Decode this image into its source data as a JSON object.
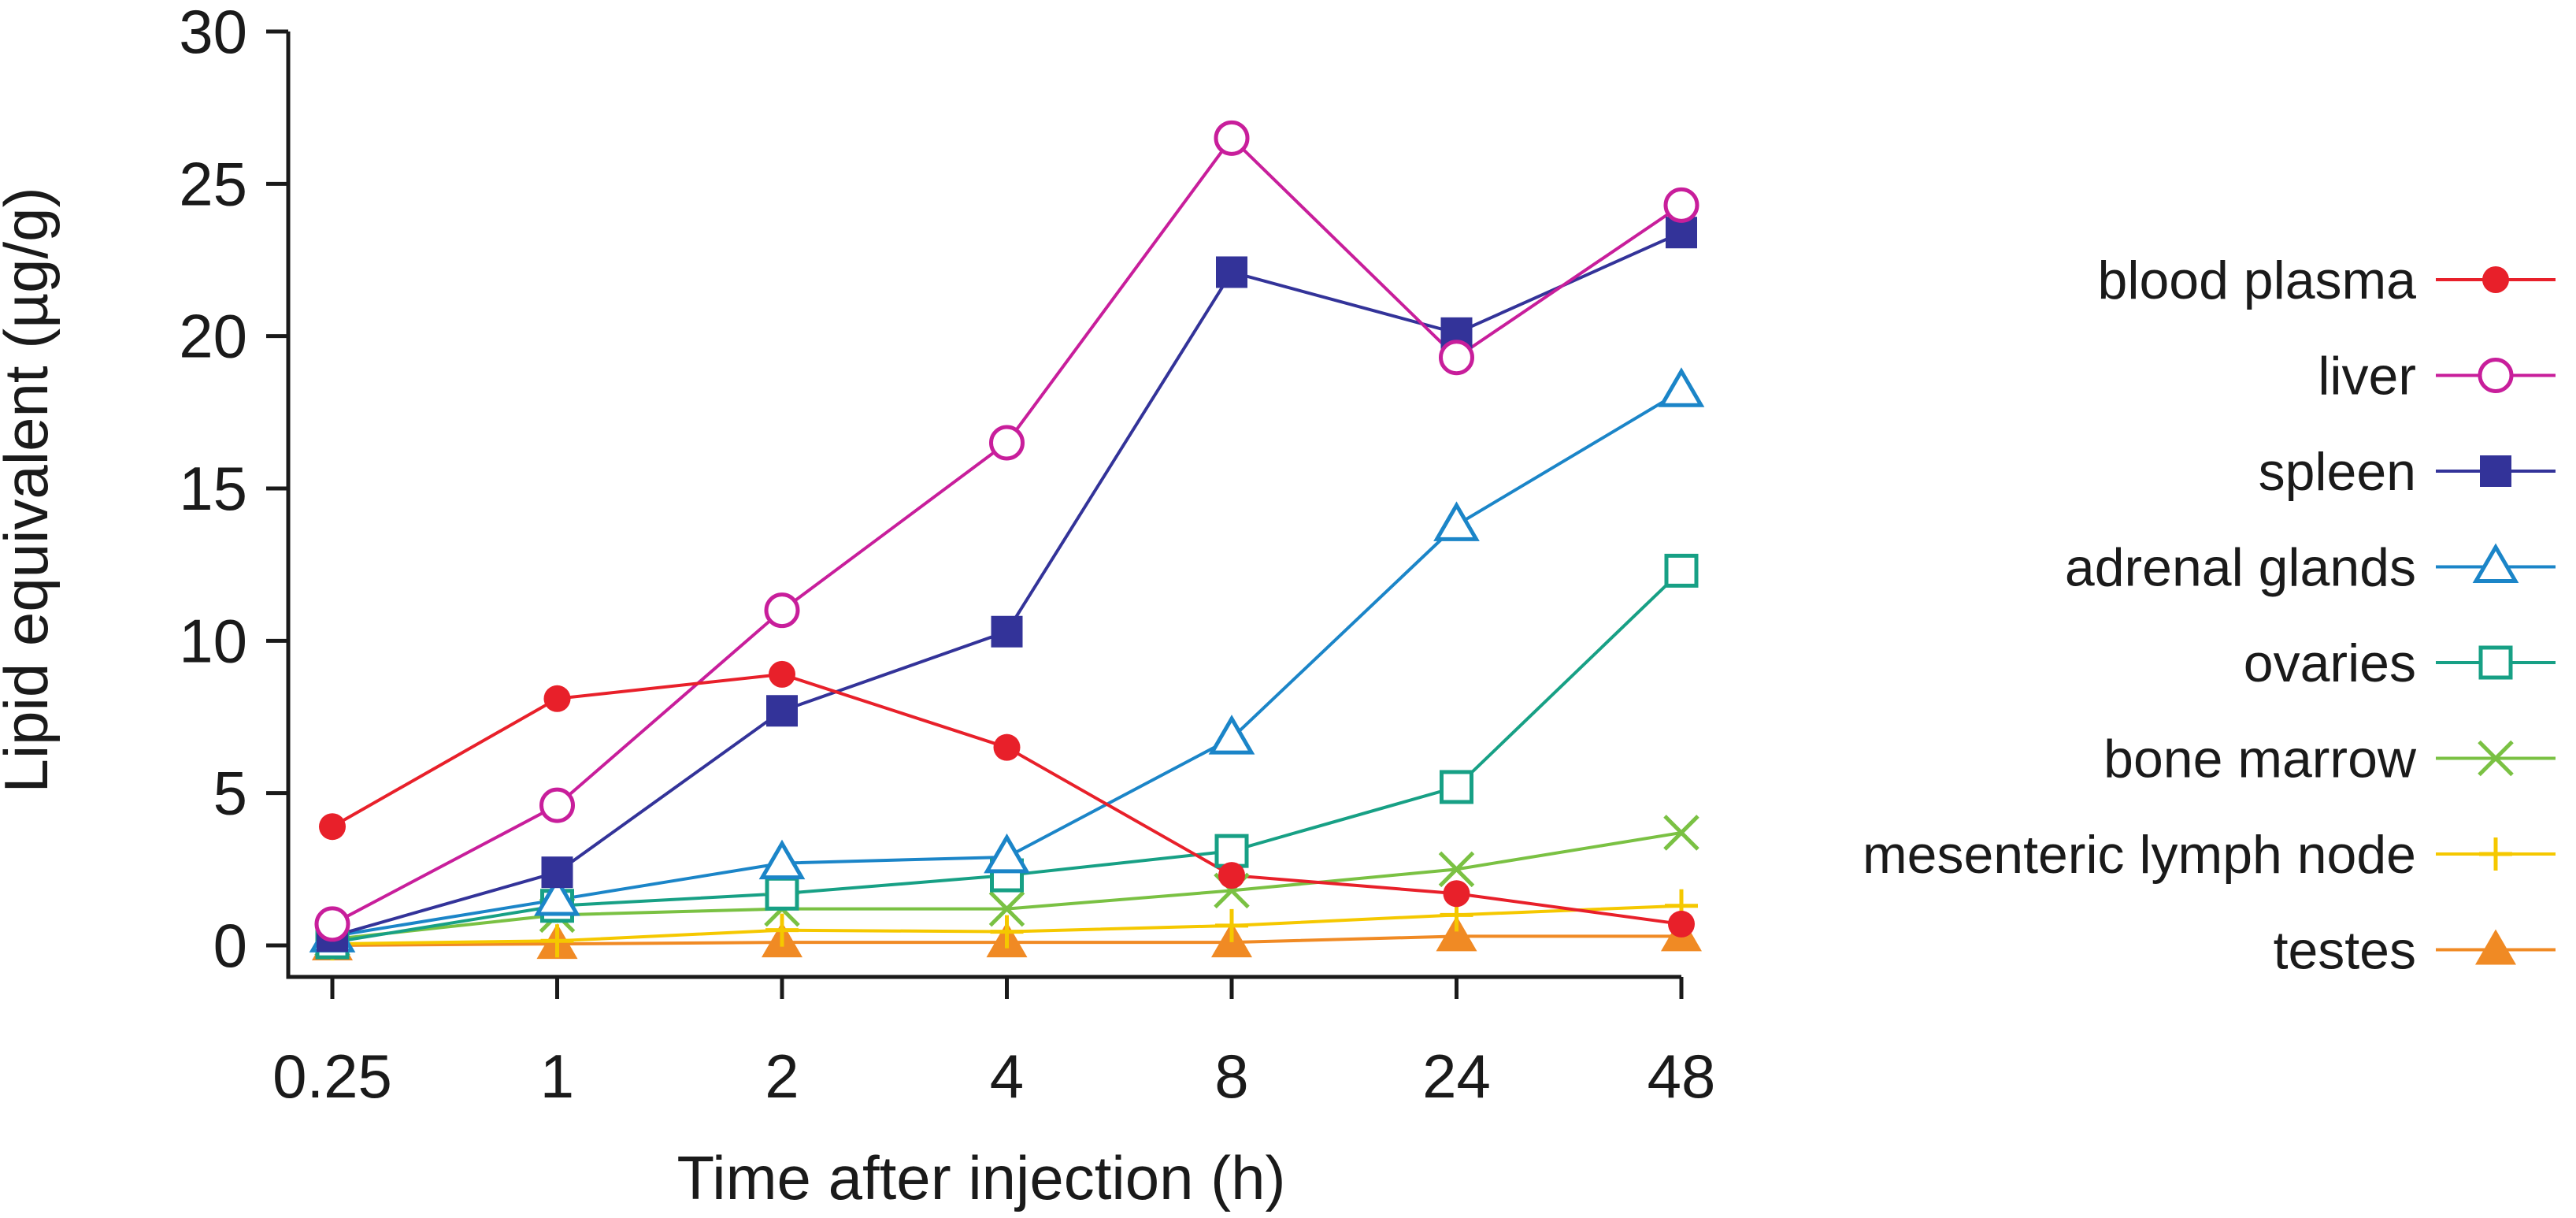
{
  "chart_data": {
    "type": "line",
    "title": "",
    "xlabel": "Time after injection (h)",
    "ylabel": "Lipid equivalent (µg/g)",
    "x_scale": "categorical",
    "categories": [
      "0.25",
      "1",
      "2",
      "4",
      "8",
      "24",
      "48"
    ],
    "y_ticks": [
      "0",
      "5",
      "10",
      "15",
      "20",
      "25",
      "30"
    ],
    "ylim": [
      0,
      30
    ],
    "grid": false,
    "legend_position": "right",
    "series": [
      {
        "name": "blood plasma",
        "color": "#e8202a",
        "marker": "filled-circle",
        "values": [
          3.9,
          8.1,
          8.9,
          6.5,
          2.3,
          1.7,
          0.7
        ]
      },
      {
        "name": "liver",
        "color": "#c81e9b",
        "marker": "open-circle",
        "values": [
          0.7,
          4.6,
          11.0,
          16.5,
          26.5,
          19.3,
          24.3
        ]
      },
      {
        "name": "spleen",
        "color": "#333399",
        "marker": "filled-square",
        "values": [
          0.3,
          2.4,
          7.7,
          10.3,
          22.1,
          20.1,
          23.4
        ]
      },
      {
        "name": "adrenal glands",
        "color": "#1b85c8",
        "marker": "open-triangle",
        "values": [
          0.3,
          1.5,
          2.7,
          2.9,
          6.8,
          13.8,
          18.2
        ]
      },
      {
        "name": "ovaries",
        "color": "#17a085",
        "marker": "open-square",
        "values": [
          0.1,
          1.3,
          1.7,
          2.3,
          3.1,
          5.2,
          12.3
        ]
      },
      {
        "name": "bone marrow",
        "color": "#7ac143",
        "marker": "cross",
        "values": [
          0.2,
          1.0,
          1.2,
          1.2,
          1.8,
          2.5,
          3.7
        ]
      },
      {
        "name": "mesenteric lymph node",
        "color": "#f5c800",
        "marker": "plus",
        "values": [
          0.05,
          0.15,
          0.5,
          0.45,
          0.65,
          1.0,
          1.3
        ]
      },
      {
        "name": "testes",
        "color": "#f08a24",
        "marker": "filled-triangle",
        "values": [
          0.0,
          0.05,
          0.1,
          0.1,
          0.1,
          0.3,
          0.3
        ]
      }
    ]
  }
}
